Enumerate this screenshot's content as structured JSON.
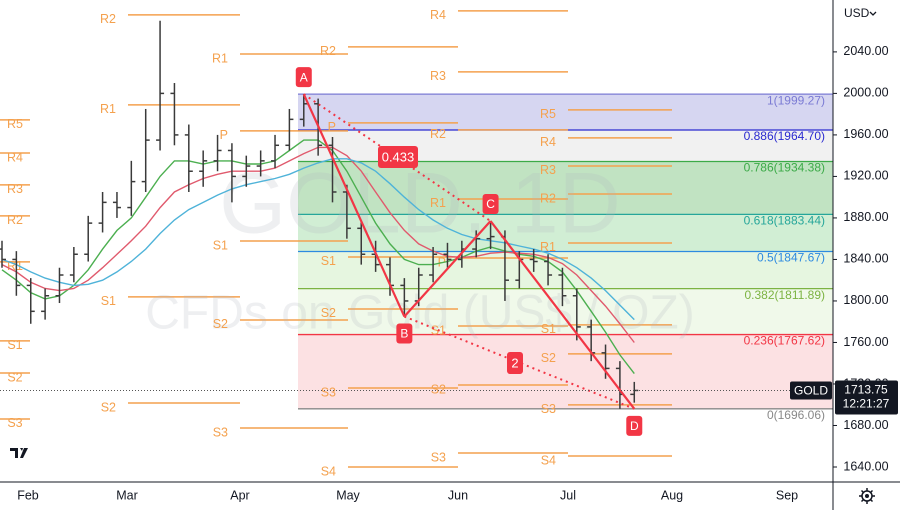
{
  "chart_data": {
    "type": "ohlc",
    "currency": "USD",
    "watermark": "GOLD, 1D",
    "subtitle": "CFDs on Gold (US$ / OZ)",
    "categories": [
      "Feb",
      "Mar",
      "Apr",
      "May",
      "Jun",
      "Jul",
      "Aug",
      "Sep"
    ],
    "ylim": [
      1620,
      2090
    ],
    "yticks": [
      {
        "value": 1640,
        "label": "1640.00"
      },
      {
        "value": 1680,
        "label": "1680.00"
      },
      {
        "value": 1720,
        "label": "1720.00"
      },
      {
        "value": 1760,
        "label": "1760.00"
      },
      {
        "value": 1800,
        "label": "1800.00"
      },
      {
        "value": 1840,
        "label": "1840.00"
      },
      {
        "value": 1880,
        "label": "1880.00"
      },
      {
        "value": 1920,
        "label": "1920.00"
      },
      {
        "value": 1960,
        "label": "1960.00"
      },
      {
        "value": 2000,
        "label": "2000.00"
      },
      {
        "value": 2040,
        "label": "2040.00"
      }
    ],
    "bar_color": "#3a3a3a",
    "ohlc": [
      [
        1850,
        1858,
        1832,
        1840
      ],
      [
        1840,
        1848,
        1805,
        1815
      ],
      [
        1815,
        1822,
        1778,
        1790
      ],
      [
        1790,
        1812,
        1782,
        1805
      ],
      [
        1805,
        1832,
        1798,
        1825
      ],
      [
        1825,
        1852,
        1818,
        1845
      ],
      [
        1845,
        1882,
        1838,
        1875
      ],
      [
        1875,
        1905,
        1866,
        1895
      ],
      [
        1895,
        1905,
        1880,
        1890
      ],
      [
        1890,
        1935,
        1882,
        1915
      ],
      [
        1915,
        1985,
        1905,
        1955
      ],
      [
        1955,
        2070,
        1945,
        2000
      ],
      [
        2000,
        2010,
        1950,
        1960
      ],
      [
        1960,
        1970,
        1905,
        1925
      ],
      [
        1925,
        1945,
        1910,
        1935
      ],
      [
        1935,
        1960,
        1925,
        1945
      ],
      [
        1945,
        1952,
        1895,
        1920
      ],
      [
        1920,
        1940,
        1910,
        1930
      ],
      [
        1930,
        1945,
        1920,
        1935
      ],
      [
        1935,
        1960,
        1928,
        1950
      ],
      [
        1950,
        1985,
        1945,
        1975
      ],
      [
        1975,
        1999.27,
        1968,
        1990
      ],
      [
        1990,
        1995,
        1940,
        1950
      ],
      [
        1950,
        1958,
        1895,
        1905
      ],
      [
        1905,
        1912,
        1860,
        1870
      ],
      [
        1870,
        1878,
        1835,
        1845
      ],
      [
        1845,
        1858,
        1828,
        1835
      ],
      [
        1835,
        1842,
        1805,
        1815
      ],
      [
        1815,
        1822,
        1785,
        1800
      ],
      [
        1800,
        1832,
        1795,
        1825
      ],
      [
        1825,
        1852,
        1818,
        1845
      ],
      [
        1845,
        1856,
        1832,
        1840
      ],
      [
        1840,
        1858,
        1832,
        1850
      ],
      [
        1850,
        1868,
        1842,
        1860
      ],
      [
        1860,
        1877,
        1850,
        1862
      ],
      [
        1862,
        1868,
        1800,
        1820
      ],
      [
        1820,
        1848,
        1812,
        1840
      ],
      [
        1840,
        1850,
        1828,
        1838
      ],
      [
        1838,
        1845,
        1815,
        1825
      ],
      [
        1825,
        1832,
        1795,
        1805
      ],
      [
        1805,
        1812,
        1762,
        1775
      ],
      [
        1775,
        1782,
        1742,
        1750
      ],
      [
        1750,
        1758,
        1725,
        1735
      ],
      [
        1735,
        1742,
        1696.06,
        1710
      ],
      [
        1710,
        1722,
        1702,
        1713.75
      ]
    ],
    "moving_averages": [
      {
        "color": "#4caf50",
        "values": [
          1830,
          1820,
          1808,
          1802,
          1805,
          1815,
          1830,
          1850,
          1868,
          1880,
          1900,
          1920,
          1935,
          1935,
          1932,
          1935,
          1935,
          1932,
          1932,
          1935,
          1945,
          1955,
          1955,
          1945,
          1925,
          1900,
          1875,
          1855,
          1840,
          1835,
          1835,
          1838,
          1842,
          1848,
          1852,
          1848,
          1845,
          1843,
          1838,
          1828,
          1810,
          1790,
          1770,
          1748,
          1730
        ]
      },
      {
        "color": "#e05a6d",
        "values": [
          1835,
          1828,
          1818,
          1812,
          1810,
          1812,
          1820,
          1832,
          1845,
          1858,
          1872,
          1890,
          1905,
          1912,
          1918,
          1922,
          1925,
          1925,
          1925,
          1928,
          1935,
          1942,
          1948,
          1948,
          1940,
          1925,
          1905,
          1885,
          1868,
          1855,
          1848,
          1843,
          1842,
          1843,
          1846,
          1847,
          1846,
          1845,
          1842,
          1836,
          1825,
          1810,
          1795,
          1778,
          1760
        ]
      },
      {
        "color": "#4fb3d9",
        "values": [
          1840,
          1835,
          1828,
          1822,
          1818,
          1815,
          1816,
          1820,
          1828,
          1838,
          1850,
          1865,
          1878,
          1888,
          1895,
          1902,
          1908,
          1912,
          1915,
          1918,
          1922,
          1928,
          1933,
          1937,
          1937,
          1933,
          1925,
          1913,
          1900,
          1888,
          1878,
          1870,
          1864,
          1860,
          1858,
          1856,
          1853,
          1850,
          1846,
          1840,
          1832,
          1822,
          1810,
          1796,
          1782
        ]
      }
    ],
    "fib_levels": [
      {
        "label": "1(1999.27)",
        "value": 1999.27,
        "color": "#7b7bd4",
        "band": "#8a8ad8"
      },
      {
        "label": "0.886(1964.70)",
        "value": 1964.7,
        "color": "#2a2ad0",
        "band": "#d6d6d6"
      },
      {
        "label": "0.786(1934.38)",
        "value": 1934.38,
        "color": "#3caa48",
        "band": "#4caf50"
      },
      {
        "label": "0.618(1883.44)",
        "value": 1883.44,
        "color": "#26a69a",
        "band": "#7bcf84"
      },
      {
        "label": "0.5(1847.67)",
        "value": 1847.67,
        "color": "#2d8ae0",
        "band": "#b8e6a6"
      },
      {
        "label": "0.382(1811.89)",
        "value": 1811.89,
        "color": "#7cb342",
        "band": "#d3efc2"
      },
      {
        "label": "0.236(1767.62)",
        "value": 1767.62,
        "color": "#f23645",
        "band": "#f7a9ae"
      },
      {
        "label": "0(1696.06)",
        "value": 1696.06,
        "color": "#888888"
      }
    ],
    "pivot_color": "#f4a14e",
    "pivots": [
      [
        {
          "label": "R5",
          "value": 1974.5
        },
        {
          "label": "R4",
          "value": 1942.6
        },
        {
          "label": "R3",
          "value": 1911.8
        },
        {
          "label": "R2",
          "value": 1882
        },
        {
          "label": "R1",
          "value": 1837.6
        },
        {
          "label": "S1",
          "value": 1761.5
        },
        {
          "label": "S2",
          "value": 1730.6
        },
        {
          "label": "S3",
          "value": 1686.3
        }
      ],
      [
        {
          "label": "R2",
          "value": 2075.7
        },
        {
          "label": "R1",
          "value": 1988.9
        },
        {
          "label": "S1",
          "value": 1803.9
        },
        {
          "label": "S2",
          "value": 1701.7
        }
      ],
      [
        {
          "label": "R1",
          "value": 2038
        },
        {
          "label": "P",
          "value": 1963.9
        },
        {
          "label": "S1",
          "value": 1857.8
        },
        {
          "label": "S2",
          "value": 1781.7
        },
        {
          "label": "S3",
          "value": 1677.6
        }
      ],
      [
        {
          "label": "R2",
          "value": 2044.8
        },
        {
          "label": "P",
          "value": 1971.6
        },
        {
          "label": "S1",
          "value": 1842.4
        },
        {
          "label": "S2",
          "value": 1792.3
        },
        {
          "label": "S3",
          "value": 1716.1
        },
        {
          "label": "S4",
          "value": 1640
        }
      ],
      [
        {
          "label": "R4",
          "value": 2079.5
        },
        {
          "label": "R3",
          "value": 2020.7
        },
        {
          "label": "R2",
          "value": 1964.8
        },
        {
          "label": "R1",
          "value": 1898.3
        },
        {
          "label": "P",
          "value": 1841.4
        },
        {
          "label": "S1",
          "value": 1775.9
        },
        {
          "label": "S2",
          "value": 1719
        },
        {
          "label": "S3",
          "value": 1653.5
        }
      ],
      [
        {
          "label": "R5",
          "value": 1984.1
        },
        {
          "label": "R4",
          "value": 1957.1
        },
        {
          "label": "R3",
          "value": 1930.1
        },
        {
          "label": "R2",
          "value": 1903.1
        },
        {
          "label": "R1",
          "value": 1855.9
        },
        {
          "label": "S1",
          "value": 1776.9
        },
        {
          "label": "S2",
          "value": 1749
        },
        {
          "label": "S3",
          "value": 1699.8
        },
        {
          "label": "S4",
          "value": 1650.6
        }
      ]
    ],
    "pattern": {
      "color": "#f23645",
      "points": [
        {
          "label": "A",
          "x": 21,
          "value": 1999.27
        },
        {
          "label": "B",
          "x": 28,
          "value": 1785
        },
        {
          "label": "C",
          "x": 34,
          "value": 1877
        },
        {
          "label": "D",
          "x": 44,
          "value": 1696.06
        }
      ],
      "annotations": [
        "0.433",
        "2"
      ]
    },
    "last_price": {
      "symbol": "GOLD",
      "value": 1713.75,
      "countdown": "12:21:27"
    }
  }
}
